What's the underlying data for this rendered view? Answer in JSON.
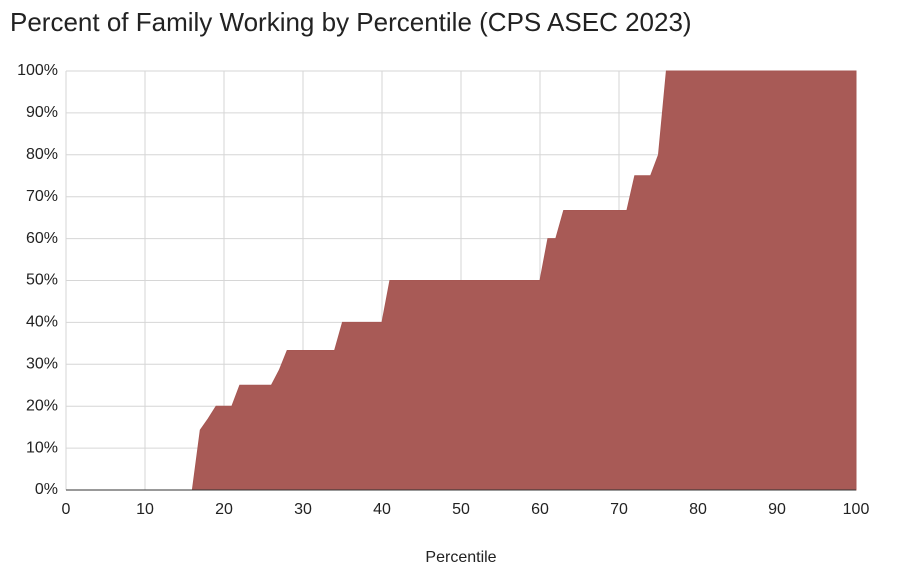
{
  "chart_data": {
    "type": "area",
    "title": "Percent of Family Working by Percentile (CPS ASEC 2023)",
    "x_label": "Percentile",
    "x": [
      0,
      16,
      17,
      18,
      19,
      21,
      22,
      26,
      27,
      28,
      34,
      35,
      40,
      41,
      60,
      61,
      62,
      63,
      71,
      72,
      74,
      75,
      76,
      100
    ],
    "values": [
      0,
      0,
      14.3,
      17,
      20,
      20,
      25,
      25,
      28.6,
      33.3,
      33.3,
      40,
      40,
      50,
      50,
      60,
      60,
      66.7,
      66.7,
      75,
      75,
      80,
      100,
      100
    ],
    "color": "#a65753",
    "xlim": [
      0,
      100
    ],
    "xticks": [
      0,
      10,
      20,
      30,
      40,
      50,
      60,
      70,
      80,
      90,
      100
    ],
    "ylim": [
      0,
      100
    ],
    "yticks": [
      {
        "value": 0,
        "label": "0%"
      },
      {
        "value": 10,
        "label": "10%"
      },
      {
        "value": 20,
        "label": "20%"
      },
      {
        "value": 30,
        "label": "30%"
      },
      {
        "value": 40,
        "label": "40%"
      },
      {
        "value": 50,
        "label": "50%"
      },
      {
        "value": 60,
        "label": "60%"
      },
      {
        "value": 70,
        "label": "70%"
      },
      {
        "value": 80,
        "label": "80%"
      },
      {
        "value": 90,
        "label": "90%"
      },
      {
        "value": 100,
        "label": "100%"
      }
    ],
    "grid": true
  }
}
